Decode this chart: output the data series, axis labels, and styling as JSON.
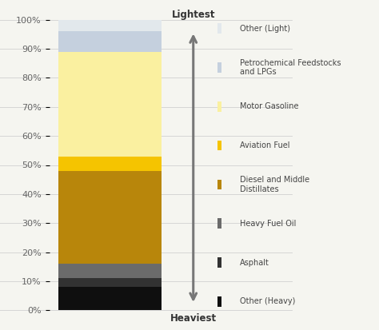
{
  "segments": [
    {
      "label": "Other (Heavy)",
      "value": 8,
      "color": "#0f0f0f"
    },
    {
      "label": "Asphalt",
      "value": 3,
      "color": "#323232"
    },
    {
      "label": "Heavy Fuel Oil",
      "value": 5,
      "color": "#6b6b6b"
    },
    {
      "label": "Diesel and Middle Distillates",
      "value": 32,
      "color": "#b8860b"
    },
    {
      "label": "Aviation Fuel",
      "value": 5,
      "color": "#f5c400"
    },
    {
      "label": "Motor Gasoline",
      "value": 36,
      "color": "#faf0a0"
    },
    {
      "label": "Petrochemical Feedstocks and LPGs",
      "value": 7,
      "color": "#c5d0de"
    },
    {
      "label": "Other (Light)",
      "value": 4,
      "color": "#e2e8ec"
    }
  ],
  "legend_entries": [
    {
      "label": "Other (Light)",
      "color": "#e2e8ec"
    },
    {
      "label": "Petrochemical Feedstocks\nand LPGs",
      "color": "#c5d0de"
    },
    {
      "label": "Motor Gasoline",
      "color": "#faf0a0"
    },
    {
      "label": "Aviation Fuel",
      "color": "#f5c400"
    },
    {
      "label": "Diesel and Middle\nDistillates",
      "color": "#b8860b"
    },
    {
      "label": "Heavy Fuel Oil",
      "color": "#6b6b6b"
    },
    {
      "label": "Asphalt",
      "color": "#323232"
    },
    {
      "label": "Other (Heavy)",
      "color": "#0f0f0f"
    }
  ],
  "background_color": "#f5f5f0",
  "arrow_color": "#777777",
  "lightest_text": "Lightest",
  "heaviest_text": "Heaviest",
  "ytick_labels": [
    "0%",
    "10%",
    "20%",
    "30%",
    "40%",
    "50%",
    "60%",
    "70%",
    "80%",
    "90%",
    "100%"
  ],
  "ytick_values": [
    0,
    10,
    20,
    30,
    40,
    50,
    60,
    70,
    80,
    90,
    100
  ],
  "grid_color": "#d0d0d0",
  "tick_color": "#666666",
  "label_color": "#444444"
}
